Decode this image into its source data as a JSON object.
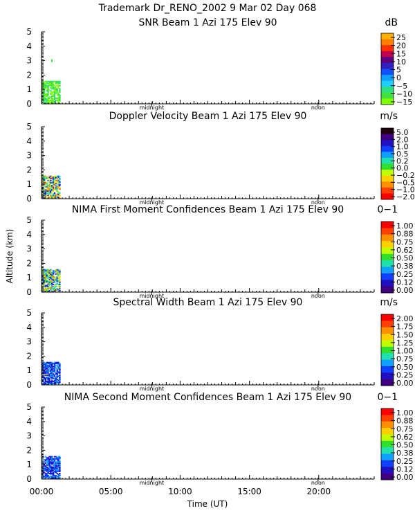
{
  "header": {
    "line1": "Trademark Dr_RENO_2002   9 Mar 02 Day 068"
  },
  "y_axis_label": "Altitude (km)",
  "x_axis_label": "Time (UT)",
  "x_ticks": [
    "00:00",
    "05:00",
    "10:00",
    "15:00",
    "20:00"
  ],
  "markers": {
    "midnight": "midnight",
    "noon": "noon"
  },
  "chart_data": [
    {
      "type": "heatmap",
      "title": "SNR Beam 1 Azi 175 Elev 90",
      "unit": "dB",
      "colorbar_ticks": [
        "25",
        "20",
        "15",
        "10",
        "5",
        "0",
        "−5",
        "−10",
        "−15"
      ],
      "colorbar_colors": [
        "#ffb000",
        "#ff8000",
        "#ff3000",
        "#c00050",
        "#600080",
        "#3020c0",
        "#1050ff",
        "#10a0ff",
        "#20d0ff",
        "#30e080",
        "#40e040",
        "#80ff00"
      ],
      "xlim": [
        0,
        24
      ],
      "ylim": [
        0,
        5
      ],
      "y_ticks": [
        "0",
        "1",
        "2",
        "3",
        "4",
        "5"
      ],
      "data_extent": {
        "x": [
          0.05,
          1.35
        ],
        "y": [
          0,
          1.6
        ]
      }
    },
    {
      "type": "heatmap",
      "title": "Doppler Velocity Beam 1 Azi 175 Elev 90",
      "unit": "m/s",
      "colorbar_ticks": [
        "5.0",
        "2.0",
        "1.0",
        "0.5",
        "0.2",
        "0.0",
        "−0.2",
        "−0.5",
        "−1.0",
        "−2.0"
      ],
      "colorbar_colors": [
        "#200010",
        "#400080",
        "#2010c0",
        "#1040ff",
        "#10a0ff",
        "#20e0b0",
        "#30e030",
        "#c0ff00",
        "#ffd000",
        "#ff9000",
        "#ff4000",
        "#ff0000"
      ],
      "xlim": [
        0,
        24
      ],
      "ylim": [
        0,
        5
      ],
      "y_ticks": [
        "0",
        "1",
        "2",
        "3",
        "4",
        "5"
      ],
      "data_extent": {
        "x": [
          0.05,
          1.35
        ],
        "y": [
          0,
          1.6
        ]
      }
    },
    {
      "type": "heatmap",
      "title": "NIMA First Moment Confidences Beam 1 Azi 175 Elev 90",
      "unit": "0−1",
      "colorbar_ticks": [
        "1.00",
        "0.88",
        "0.75",
        "0.62",
        "0.50",
        "0.38",
        "0.25",
        "0.12",
        "0.00"
      ],
      "colorbar_colors": [
        "#ff0000",
        "#ff4000",
        "#ff9000",
        "#ffd000",
        "#c0ff00",
        "#30e030",
        "#20e0b0",
        "#10a0ff",
        "#1040ff",
        "#2010c0",
        "#400080"
      ],
      "xlim": [
        0,
        24
      ],
      "ylim": [
        0,
        5
      ],
      "y_ticks": [
        "0",
        "1",
        "2",
        "3",
        "4",
        "5"
      ],
      "data_extent": {
        "x": [
          0.05,
          1.35
        ],
        "y": [
          0,
          1.6
        ]
      }
    },
    {
      "type": "heatmap",
      "title": "Spectral Width Beam 1 Azi 175 Elev 90",
      "unit": "m/s",
      "colorbar_ticks": [
        "2.00",
        "1.75",
        "1.50",
        "1.25",
        "1.00",
        "0.75",
        "0.50",
        "0.25",
        "0.00"
      ],
      "colorbar_colors": [
        "#ff0000",
        "#ff4000",
        "#ff9000",
        "#ffd000",
        "#c0ff00",
        "#30e030",
        "#20e0b0",
        "#10a0ff",
        "#1040ff",
        "#2010c0",
        "#400080"
      ],
      "xlim": [
        0,
        24
      ],
      "ylim": [
        0,
        5
      ],
      "y_ticks": [
        "0",
        "1",
        "2",
        "3",
        "4",
        "5"
      ],
      "data_extent": {
        "x": [
          0.05,
          1.35
        ],
        "y": [
          0,
          1.6
        ]
      }
    },
    {
      "type": "heatmap",
      "title": "NIMA Second Moment Confidences Beam 1 Azi 175 Elev 90",
      "unit": "0−1",
      "colorbar_ticks": [
        "1.00",
        "0.88",
        "0.75",
        "0.62",
        "0.50",
        "0.38",
        "0.25",
        "0.12",
        "0.00"
      ],
      "colorbar_colors": [
        "#ff0000",
        "#ff4000",
        "#ff9000",
        "#ffd000",
        "#c0ff00",
        "#30e030",
        "#20e0b0",
        "#10a0ff",
        "#1040ff",
        "#2010c0",
        "#400080"
      ],
      "xlim": [
        0,
        24
      ],
      "ylim": [
        0,
        5
      ],
      "y_ticks": [
        "0",
        "1",
        "2",
        "3",
        "4",
        "5"
      ],
      "data_extent": {
        "x": [
          0.05,
          1.35
        ],
        "y": [
          0,
          1.6
        ]
      }
    }
  ]
}
